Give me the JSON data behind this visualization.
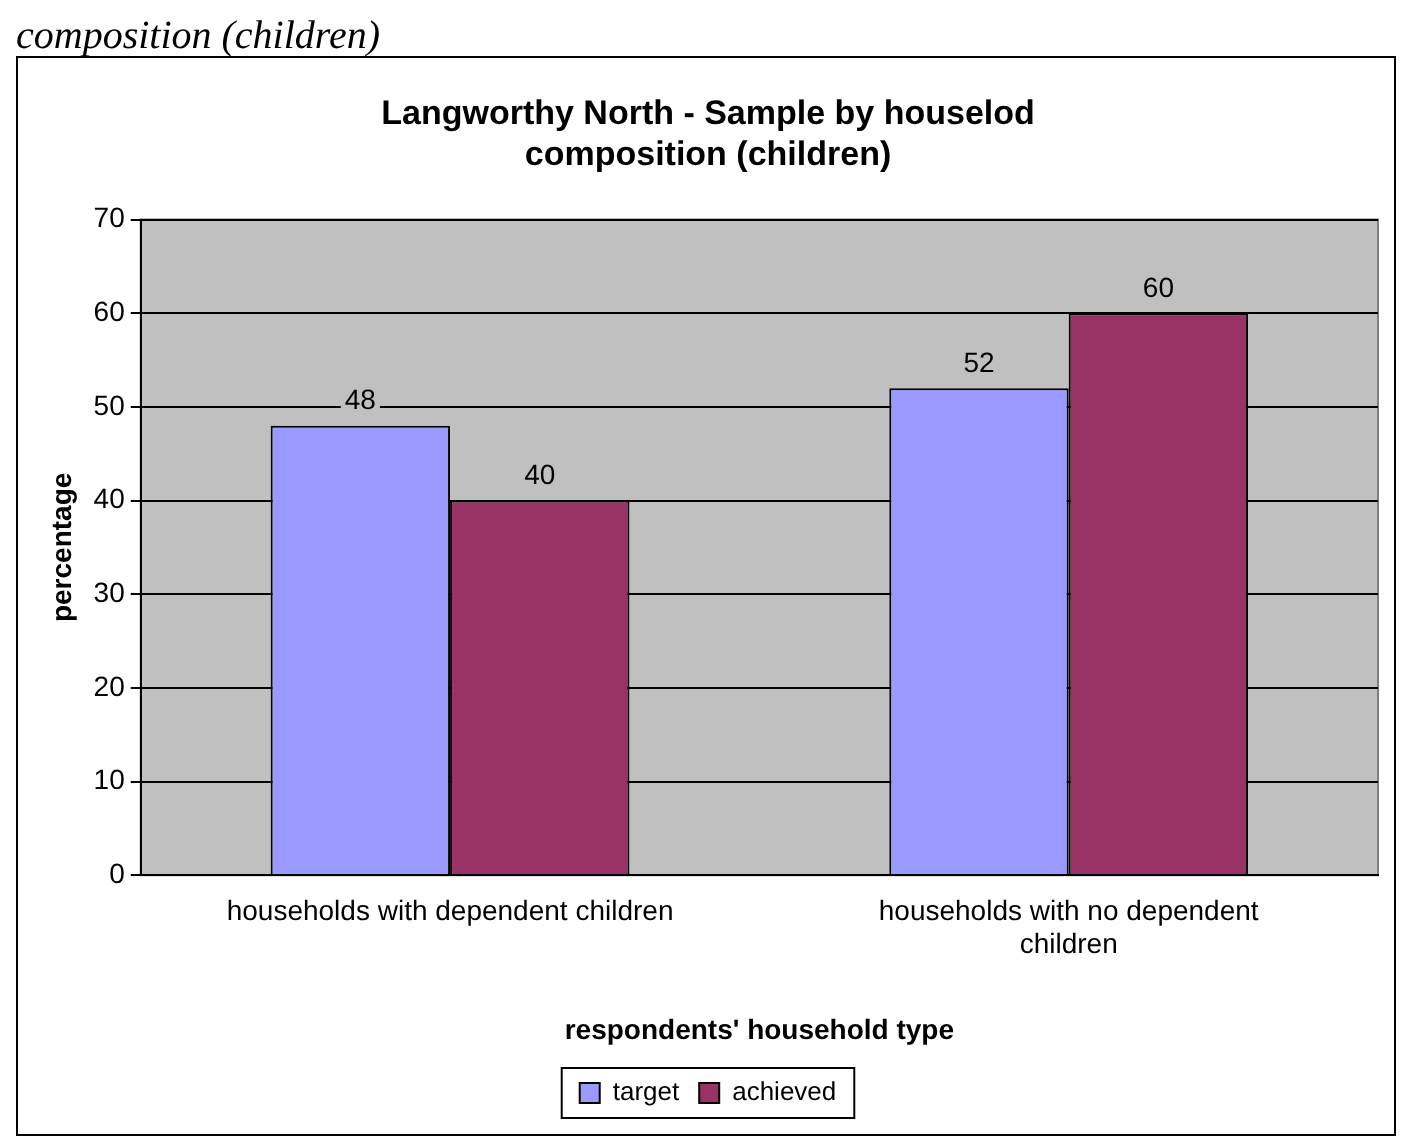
{
  "chart_data": {
    "type": "bar",
    "title": "Langworthy North - Sample by houselod composition (children)",
    "xlabel": "respondents' household type",
    "ylabel": "percentage",
    "categories": [
      "households with dependent children",
      "households with no dependent children"
    ],
    "series": [
      {
        "name": "target",
        "color": "#9999ff",
        "values": [
          48,
          52
        ]
      },
      {
        "name": "achieved",
        "color": "#993366",
        "values": [
          40,
          60
        ]
      }
    ],
    "ylim": [
      0,
      70
    ],
    "yticks": [
      0,
      10,
      20,
      30,
      40,
      50,
      60,
      70
    ],
    "grid": "y",
    "legend": "bottom",
    "data_labels": true,
    "annotations": [
      "composition (children)"
    ]
  }
}
